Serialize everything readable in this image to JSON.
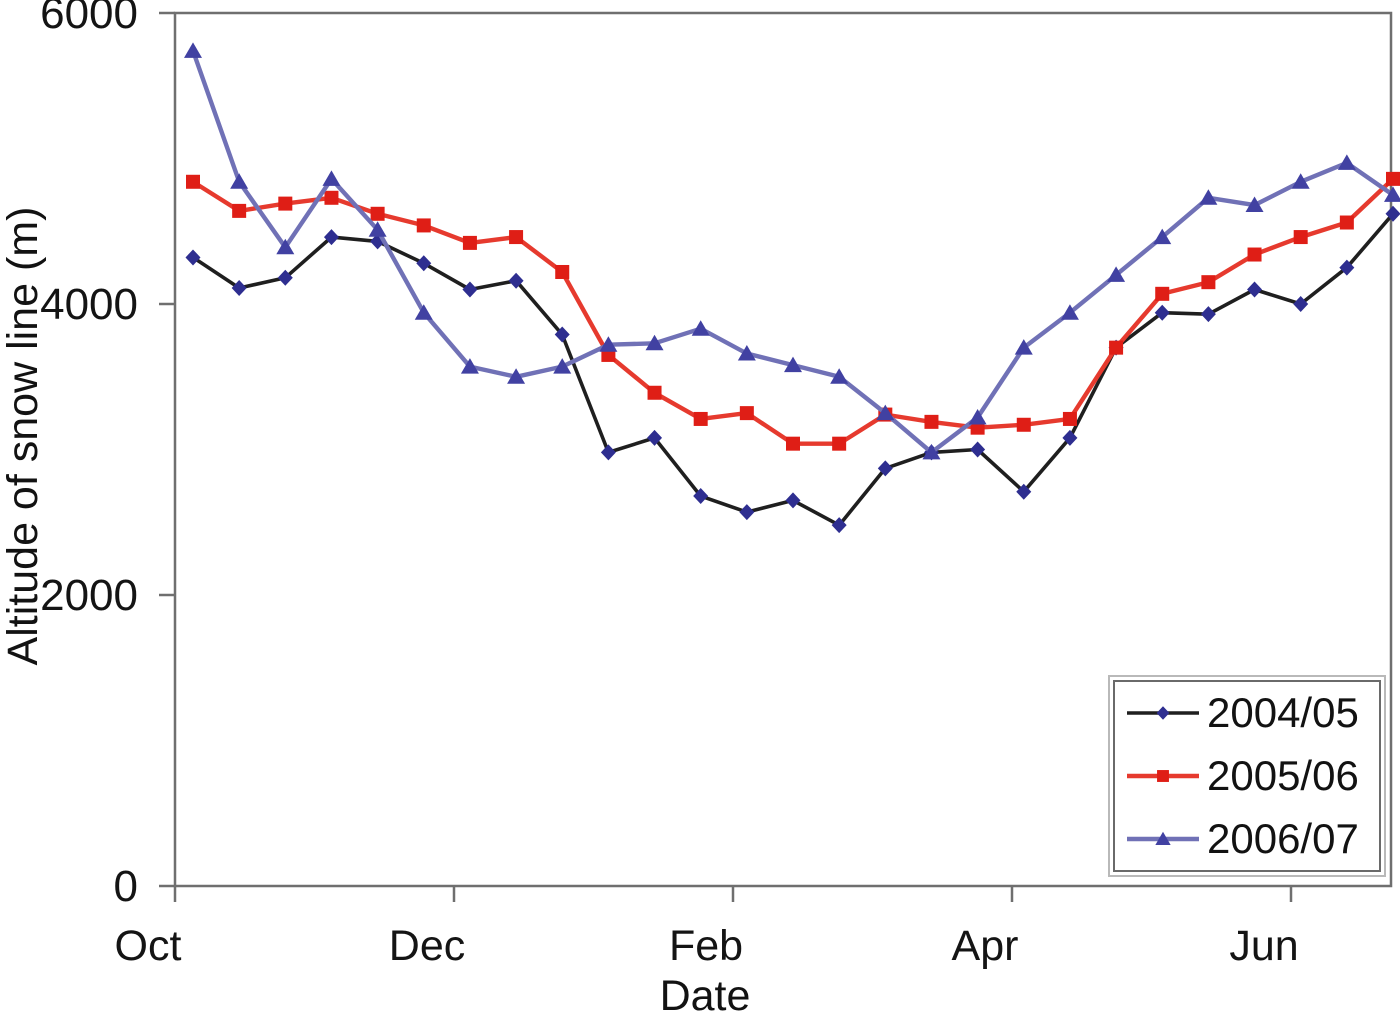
{
  "chart_data": {
    "type": "line",
    "title": "",
    "xlabel": "Date",
    "ylabel": "Altitude of snow line (m)",
    "ylim": [
      0,
      6000
    ],
    "y_tick_values": [
      0,
      2000,
      4000,
      6000
    ],
    "y_tick_labels": [
      "0",
      "2000",
      "4000",
      "6000"
    ],
    "x_tick_labels": [
      "Oct",
      "Dec",
      "Feb",
      "Apr",
      "Jun"
    ],
    "x_note": "27 observations per season, ~3 per month from early October to late June",
    "grid": false,
    "legend_position": "inside-bottom-right",
    "series": [
      {
        "name": "2004/05",
        "marker": "diamond",
        "line_color": "#1f1f1f",
        "marker_color": "#2e2e90",
        "values": [
          4320,
          4110,
          4180,
          4460,
          4430,
          4280,
          4100,
          4160,
          3790,
          2980,
          3080,
          2680,
          2570,
          2650,
          2480,
          2870,
          2980,
          3000,
          2710,
          3080,
          3700,
          3940,
          3930,
          4100,
          4000,
          4250,
          4620
        ]
      },
      {
        "name": "2005/06",
        "marker": "square",
        "line_color": "#e63a2e",
        "marker_color": "#df1e16",
        "values": [
          4840,
          4640,
          4690,
          4730,
          4620,
          4540,
          4420,
          4460,
          4220,
          3650,
          3390,
          3210,
          3250,
          3040,
          3040,
          3240,
          3190,
          3150,
          3170,
          3210,
          3700,
          4070,
          4150,
          4340,
          4460,
          4560,
          4860
        ]
      },
      {
        "name": "2006/07",
        "marker": "triangle",
        "line_color": "#7071b6",
        "marker_color": "#4141a2",
        "values": [
          5740,
          4840,
          4390,
          4860,
          4510,
          3940,
          3570,
          3500,
          3570,
          3720,
          3730,
          3830,
          3660,
          3580,
          3500,
          3250,
          2980,
          3220,
          3700,
          3940,
          4200,
          4460,
          4730,
          4680,
          4840,
          4970,
          4750
        ]
      }
    ]
  },
  "colors": {
    "axis": "#6f6f6f",
    "tick_text": "#141414",
    "background": "#ffffff"
  }
}
